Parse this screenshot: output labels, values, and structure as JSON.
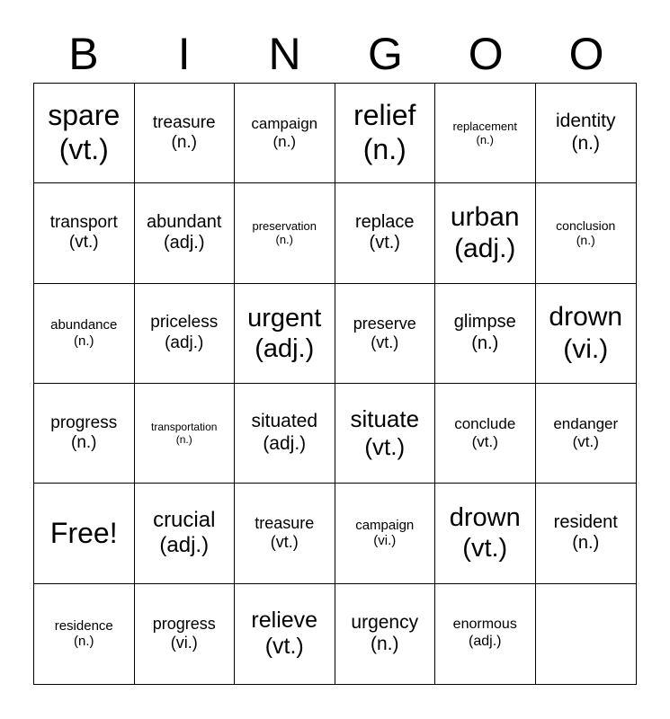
{
  "header": {
    "letters": [
      "B",
      "I",
      "N",
      "G",
      "O",
      "O"
    ]
  },
  "cells": [
    {
      "word": "spare",
      "pos": "(vt.)"
    },
    {
      "word": "treasure",
      "pos": "(n.)"
    },
    {
      "word": "campaign",
      "pos": "(n.)"
    },
    {
      "word": "relief",
      "pos": "(n.)"
    },
    {
      "word": "replacement",
      "pos": "(n.)"
    },
    {
      "word": "identity",
      "pos": "(n.)"
    },
    {
      "word": "transport",
      "pos": "(vt.)"
    },
    {
      "word": "abundant",
      "pos": "(adj.)"
    },
    {
      "word": "preservation",
      "pos": "(n.)"
    },
    {
      "word": "replace",
      "pos": "(vt.)"
    },
    {
      "word": "urban",
      "pos": "(adj.)"
    },
    {
      "word": "conclusion",
      "pos": "(n.)"
    },
    {
      "word": "abundance",
      "pos": "(n.)"
    },
    {
      "word": "priceless",
      "pos": "(adj.)"
    },
    {
      "word": "urgent",
      "pos": "(adj.)"
    },
    {
      "word": "preserve",
      "pos": "(vt.)"
    },
    {
      "word": "glimpse",
      "pos": "(n.)"
    },
    {
      "word": "drown",
      "pos": "(vi.)"
    },
    {
      "word": "progress",
      "pos": "(n.)"
    },
    {
      "word": "transportation",
      "pos": "(n.)"
    },
    {
      "word": "situated",
      "pos": "(adj.)"
    },
    {
      "word": "situate",
      "pos": "(vt.)"
    },
    {
      "word": "conclude",
      "pos": "(vt.)"
    },
    {
      "word": "endanger",
      "pos": "(vt.)"
    },
    {
      "word": "Free!",
      "pos": ""
    },
    {
      "word": "crucial",
      "pos": "(adj.)"
    },
    {
      "word": "treasure",
      "pos": "(vt.)"
    },
    {
      "word": "campaign",
      "pos": "(vi.)"
    },
    {
      "word": "drown",
      "pos": "(vt.)"
    },
    {
      "word": "resident",
      "pos": "(n.)"
    },
    {
      "word": "residence",
      "pos": "(n.)"
    },
    {
      "word": "progress",
      "pos": "(vi.)"
    },
    {
      "word": "relieve",
      "pos": "(vt.)"
    },
    {
      "word": "urgency",
      "pos": "(n.)"
    },
    {
      "word": "enormous",
      "pos": "(adj.)"
    },
    {
      "word": "",
      "pos": ""
    }
  ]
}
